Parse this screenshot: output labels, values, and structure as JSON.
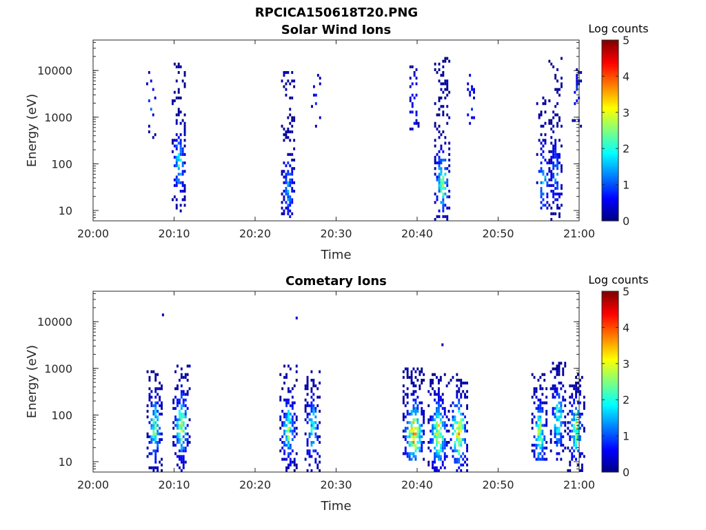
{
  "figure_title": "RPCICA150618T20.PNG",
  "chart_data": [
    {
      "type": "heatmap",
      "title": "Solar Wind Ions",
      "xlabel": "Time",
      "ylabel": "Energy (eV)",
      "x_ticks": [
        "20:00",
        "20:10",
        "20:20",
        "20:30",
        "20:40",
        "20:50",
        "21:00"
      ],
      "xlim": [
        "20:00",
        "21:00"
      ],
      "y_scale": "log",
      "y_ticks": [
        "10",
        "100",
        "1000",
        "10000"
      ],
      "ylim": [
        6,
        45000
      ],
      "colorbar": {
        "label": "Log counts",
        "ticks": [
          "0",
          "1",
          "2",
          "3",
          "4",
          "5"
        ],
        "range": [
          0,
          5
        ],
        "colormap": "jet"
      },
      "bursts": [
        {
          "time": "20:07",
          "halfwidth_min": 0.7,
          "emin": 300,
          "emax": 12000,
          "peak_energy": 2000,
          "peak_log_counts": 1.2,
          "density": 0.25
        },
        {
          "time": "20:10.5",
          "halfwidth_min": 0.8,
          "emin": 6,
          "emax": 15000,
          "peak_energy": 100,
          "peak_log_counts": 2.2,
          "density": 0.75
        },
        {
          "time": "20:24",
          "halfwidth_min": 0.8,
          "emin": 6,
          "emax": 10000,
          "peak_energy": 30,
          "peak_log_counts": 1.6,
          "density": 0.7
        },
        {
          "time": "20:27.5",
          "halfwidth_min": 0.6,
          "emin": 500,
          "emax": 8000,
          "peak_energy": 2000,
          "peak_log_counts": 0.8,
          "density": 0.3
        },
        {
          "time": "20:39.5",
          "halfwidth_min": 0.7,
          "emin": 500,
          "emax": 12000,
          "peak_energy": 2000,
          "peak_log_counts": 1.0,
          "density": 0.3
        },
        {
          "time": "20:43",
          "halfwidth_min": 0.9,
          "emin": 6,
          "emax": 20000,
          "peak_energy": 40,
          "peak_log_counts": 2.9,
          "density": 0.75
        },
        {
          "time": "20:46.5",
          "halfwidth_min": 0.6,
          "emin": 700,
          "emax": 8000,
          "peak_energy": 2000,
          "peak_log_counts": 0.9,
          "density": 0.3
        },
        {
          "time": "20:55.5",
          "halfwidth_min": 0.8,
          "emin": 10,
          "emax": 3000,
          "peak_energy": 40,
          "peak_log_counts": 2.0,
          "density": 0.55
        },
        {
          "time": "20:57",
          "halfwidth_min": 0.8,
          "emin": 6,
          "emax": 20000,
          "peak_energy": 60,
          "peak_log_counts": 1.5,
          "density": 0.7
        },
        {
          "time": "20:59.7",
          "halfwidth_min": 0.6,
          "emin": 300,
          "emax": 12000,
          "peak_energy": 3000,
          "peak_log_counts": 0.9,
          "density": 0.3
        }
      ]
    },
    {
      "type": "heatmap",
      "title": "Cometary Ions",
      "xlabel": "Time",
      "ylabel": "Energy (eV)",
      "x_ticks": [
        "20:00",
        "20:10",
        "20:20",
        "20:30",
        "20:40",
        "20:50",
        "21:00"
      ],
      "xlim": [
        "20:00",
        "21:00"
      ],
      "y_scale": "log",
      "y_ticks": [
        "10",
        "100",
        "1000",
        "10000"
      ],
      "ylim": [
        6,
        45000
      ],
      "colorbar": {
        "label": "Log counts",
        "ticks": [
          "0",
          "1",
          "2",
          "3",
          "4",
          "5"
        ],
        "range": [
          0,
          5
        ],
        "colormap": "jet"
      },
      "bursts": [
        {
          "time": "20:07.5",
          "halfwidth_min": 0.9,
          "emin": 6,
          "emax": 900,
          "peak_energy": 50,
          "peak_log_counts": 2.7,
          "density": 0.8
        },
        {
          "time": "20:10.8",
          "halfwidth_min": 1.0,
          "emin": 6,
          "emax": 1200,
          "peak_energy": 60,
          "peak_log_counts": 3.0,
          "density": 0.8
        },
        {
          "time": "20:24",
          "halfwidth_min": 1.0,
          "emin": 6,
          "emax": 1200,
          "peak_energy": 50,
          "peak_log_counts": 2.6,
          "density": 0.8
        },
        {
          "time": "20:27",
          "halfwidth_min": 0.9,
          "emin": 6,
          "emax": 900,
          "peak_energy": 50,
          "peak_log_counts": 2.4,
          "density": 0.8
        },
        {
          "time": "20:39.5",
          "halfwidth_min": 1.3,
          "emin": 10,
          "emax": 1000,
          "peak_energy": 40,
          "peak_log_counts": 4.0,
          "density": 0.85
        },
        {
          "time": "20:42.5",
          "halfwidth_min": 1.2,
          "emin": 6,
          "emax": 800,
          "peak_energy": 40,
          "peak_log_counts": 3.7,
          "density": 0.85
        },
        {
          "time": "20:45",
          "halfwidth_min": 1.2,
          "emin": 6,
          "emax": 800,
          "peak_energy": 40,
          "peak_log_counts": 3.8,
          "density": 0.85
        },
        {
          "time": "20:55",
          "halfwidth_min": 0.9,
          "emin": 10,
          "emax": 800,
          "peak_energy": 40,
          "peak_log_counts": 2.9,
          "density": 0.8
        },
        {
          "time": "20:57.3",
          "halfwidth_min": 0.9,
          "emin": 10,
          "emax": 1300,
          "peak_energy": 80,
          "peak_log_counts": 2.6,
          "density": 0.8
        },
        {
          "time": "20:59.5",
          "halfwidth_min": 1.0,
          "emin": 6,
          "emax": 800,
          "peak_energy": 50,
          "peak_log_counts": 2.8,
          "density": 0.8
        }
      ],
      "isolated_points": [
        {
          "time": "20:08.5",
          "energy": 14000,
          "log_counts": 0.3
        },
        {
          "time": "20:25",
          "energy": 12000,
          "log_counts": 0.3
        },
        {
          "time": "20:43",
          "energy": 3200,
          "log_counts": 0.3
        }
      ]
    }
  ]
}
